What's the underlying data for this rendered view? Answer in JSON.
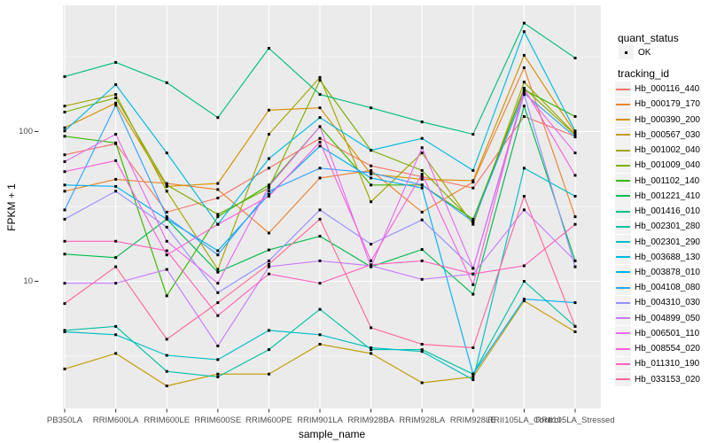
{
  "colors": {
    "panel_bg": "#EBEBEB",
    "gridline": "#FFFFFF",
    "tick_mark": "#333333",
    "tick_label": "#4D4D4D",
    "legend_key_bg": "#F2F2F2",
    "point": "#000000"
  },
  "legend": {
    "quant_status": {
      "title": "quant_status",
      "items": [
        {
          "label": "OK",
          "marker": "black-point"
        }
      ]
    },
    "tracking_id_title": "tracking_id"
  },
  "chart_data": {
    "type": "line",
    "title": "",
    "xlabel": "sample_name",
    "ylabel": "FPKM + 1",
    "y_scale": "log10",
    "ylim": [
      1.45,
      700
    ],
    "y_major_ticks": [
      100,
      10
    ],
    "y_minor_gridlines": [
      316.2,
      31.6,
      3.16
    ],
    "grid": "white major+minor horizontal, white major vertical on grey panel",
    "legend_position": "right",
    "point_shape": "small black square on every data point",
    "categories": [
      "PB350LA",
      "RRIM600LA",
      "RRIM600LE",
      "RRIM600SE",
      "RRIM600PE",
      "RRIM901LA",
      "RRIM928BA",
      "RRIM928LA",
      "RRIM928LE",
      "RRII105LA_Control",
      "RRII105LA_Stressed"
    ],
    "series": [
      {
        "name": "Hb_000116_440",
        "color": "#F8766D",
        "quant_status": "OK",
        "values": [
          70,
          83,
          29,
          36,
          57,
          90,
          59,
          50,
          42,
          126,
          93
        ]
      },
      {
        "name": "Hb_000179_170",
        "color": "#EA8331",
        "quant_status": "OK",
        "values": [
          40,
          48,
          45,
          41,
          21,
          49,
          55,
          29,
          46,
          267,
          27
        ]
      },
      {
        "name": "Hb_000390_200",
        "color": "#D89000",
        "quant_status": "OK",
        "values": [
          106,
          155,
          43,
          45,
          139,
          144,
          52,
          48,
          47,
          323,
          98
        ]
      },
      {
        "name": "Hb_000567_030",
        "color": "#C09B00",
        "quant_status": "OK",
        "values": [
          2.6,
          3.3,
          2.0,
          2.4,
          2.4,
          3.8,
          3.3,
          2.1,
          2.3,
          7.4,
          4.6
        ]
      },
      {
        "name": "Hb_001002_040",
        "color": "#A3A500",
        "quant_status": "OK",
        "values": [
          148,
          177,
          40,
          12,
          96,
          230,
          34,
          72,
          24,
          214,
          96
        ]
      },
      {
        "name": "Hb_001009_040",
        "color": "#7CAE00",
        "quant_status": "OK",
        "values": [
          135,
          168,
          44,
          28,
          42,
          220,
          75,
          55,
          25,
          195,
          95
        ]
      },
      {
        "name": "Hb_001102_140",
        "color": "#39B600",
        "quant_status": "OK",
        "values": [
          93,
          84,
          8,
          27,
          44,
          108,
          44,
          44,
          26,
          190,
          126
        ]
      },
      {
        "name": "Hb_001221_410",
        "color": "#00BB4E",
        "quant_status": "OK",
        "values": [
          15.2,
          14.4,
          26,
          11.5,
          16.2,
          20,
          12.5,
          16.3,
          8.2,
          148,
          13.7
        ]
      },
      {
        "name": "Hb_001416_010",
        "color": "#00BF7D",
        "quant_status": "OK",
        "values": [
          233,
          290,
          212,
          124,
          360,
          177,
          144,
          116,
          96,
          530,
          310
        ]
      },
      {
        "name": "Hb_002301_280",
        "color": "#00C1A3",
        "quant_status": "OK",
        "values": [
          4.7,
          5.0,
          2.5,
          2.3,
          3.5,
          6.5,
          3.5,
          3.5,
          2.4,
          10,
          5.0
        ]
      },
      {
        "name": "Hb_002301_290",
        "color": "#00BFC4",
        "quant_status": "OK",
        "values": [
          4.6,
          4.4,
          3.2,
          3.0,
          4.7,
          4.4,
          3.6,
          3.4,
          2.2,
          57,
          37
        ]
      },
      {
        "name": "Hb_003688_130",
        "color": "#00BAE0",
        "quant_status": "OK",
        "values": [
          101,
          206,
          72,
          24,
          66,
          124,
          75,
          90,
          55,
          465,
          101
        ]
      },
      {
        "name": "Hb_003878_010",
        "color": "#00B0F6",
        "quant_status": "OK",
        "values": [
          44,
          43,
          26,
          16,
          38,
          80,
          49,
          42,
          2.4,
          7.6,
          7.2
        ]
      },
      {
        "name": "Hb_004108_080",
        "color": "#35A2FF",
        "quant_status": "OK",
        "values": [
          30,
          150,
          27,
          15,
          40,
          57,
          53,
          44,
          25,
          180,
          92
        ]
      },
      {
        "name": "Hb_004310_030",
        "color": "#9590FF",
        "quant_status": "OK",
        "values": [
          26,
          40,
          23,
          8.4,
          13.7,
          30,
          17.7,
          25.7,
          12.2,
          177,
          12.5
        ]
      },
      {
        "name": "Hb_004899_050",
        "color": "#C77CFF",
        "quant_status": "OK",
        "values": [
          9.7,
          9.7,
          12,
          3.7,
          12.5,
          13.7,
          12.7,
          10.3,
          11.2,
          30,
          13.7
        ]
      },
      {
        "name": "Hb_006501_110",
        "color": "#E76BF3",
        "quant_status": "OK",
        "values": [
          63,
          96,
          18.5,
          9.7,
          43,
          108,
          12.5,
          78,
          12.2,
          185,
          72
        ]
      },
      {
        "name": "Hb_008554_020",
        "color": "#FA62DB",
        "quant_status": "OK",
        "values": [
          54,
          64,
          15,
          24,
          37,
          85,
          13.7,
          52,
          9.5,
          195,
          51
        ]
      },
      {
        "name": "Hb_011310_190",
        "color": "#FF62BC",
        "quant_status": "OK",
        "values": [
          18.5,
          18.5,
          16,
          5.9,
          11.2,
          9.7,
          12.9,
          13.7,
          11.2,
          12.7,
          24
        ]
      },
      {
        "name": "Hb_033153_020",
        "color": "#FF6A98",
        "quant_status": "OK",
        "values": [
          7.1,
          12.5,
          4.1,
          7.2,
          13,
          26,
          4.9,
          3.8,
          3.6,
          37,
          5.0
        ]
      }
    ]
  }
}
